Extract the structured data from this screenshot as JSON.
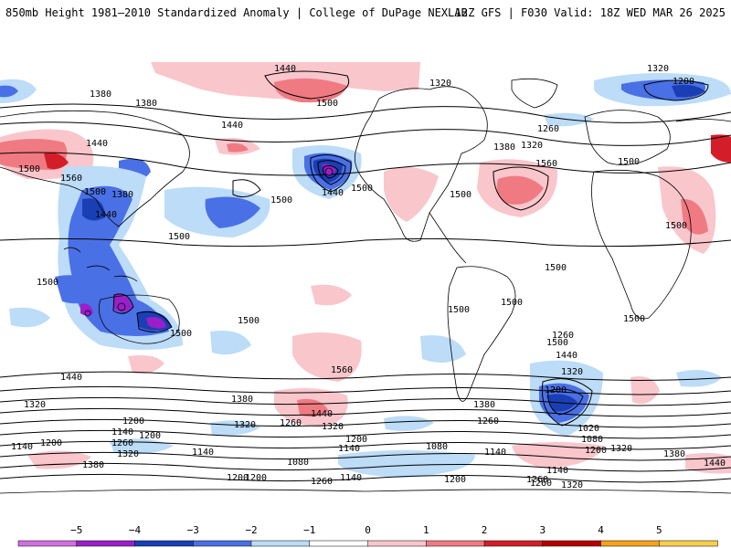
{
  "header": {
    "title": "850mb Height 1981–2010 Standardized Anomaly | College of DuPage NEXLAB",
    "run_info": "12Z GFS | F030 Valid: 18Z WED MAR 26 2025"
  },
  "colorbar": {
    "ticks": [
      "−5",
      "−4",
      "−3",
      "−2",
      "−1",
      "0",
      "1",
      "2",
      "3",
      "4",
      "5"
    ],
    "colors": [
      "#d070e0",
      "#9b1fc8",
      "#1a3fb5",
      "#4a70e6",
      "#bcdcf7",
      "#ffffff",
      "#f9c6cc",
      "#f07a82",
      "#d31e2a",
      "#b50000",
      "#f6a21a",
      "#f7cf4e"
    ]
  },
  "contour_labels": [
    {
      "text": "1440"
    },
    {
      "text": "1320"
    },
    {
      "text": "1380"
    },
    {
      "text": "1380"
    },
    {
      "text": "1320"
    },
    {
      "text": "1200"
    },
    {
      "text": "1500"
    },
    {
      "text": "1440"
    },
    {
      "text": "1260"
    },
    {
      "text": "1440"
    },
    {
      "text": "1500"
    },
    {
      "text": "1560"
    },
    {
      "text": "1380"
    },
    {
      "text": "1320"
    },
    {
      "text": "1500"
    },
    {
      "text": "1380"
    },
    {
      "text": "1440"
    },
    {
      "text": "1500"
    },
    {
      "text": "1440"
    },
    {
      "text": "1500"
    },
    {
      "text": "1500"
    },
    {
      "text": "1560"
    },
    {
      "text": "1500"
    },
    {
      "text": "1500"
    },
    {
      "text": "1500"
    },
    {
      "text": "1500"
    },
    {
      "text": "1500"
    },
    {
      "text": "1500"
    },
    {
      "text": "1500"
    },
    {
      "text": "1500"
    },
    {
      "text": "1500"
    },
    {
      "text": "1500"
    },
    {
      "text": "1440"
    },
    {
      "text": "1320"
    },
    {
      "text": "1560"
    },
    {
      "text": "1440"
    },
    {
      "text": "1320"
    },
    {
      "text": "1260"
    },
    {
      "text": "1500"
    },
    {
      "text": "1380"
    },
    {
      "text": "1200"
    },
    {
      "text": "1020"
    },
    {
      "text": "1080"
    },
    {
      "text": "1200"
    },
    {
      "text": "1320"
    },
    {
      "text": "1380"
    },
    {
      "text": "1440"
    },
    {
      "text": "1440"
    },
    {
      "text": "1260"
    },
    {
      "text": "1320"
    },
    {
      "text": "1200"
    },
    {
      "text": "1200"
    },
    {
      "text": "1140"
    },
    {
      "text": "1200"
    },
    {
      "text": "1260"
    },
    {
      "text": "1380"
    },
    {
      "text": "1140"
    },
    {
      "text": "1200"
    },
    {
      "text": "1140"
    },
    {
      "text": "1080"
    },
    {
      "text": "1140"
    },
    {
      "text": "1140"
    },
    {
      "text": "1200"
    },
    {
      "text": "1260"
    },
    {
      "text": "1320"
    },
    {
      "text": "1200"
    },
    {
      "text": "1260"
    },
    {
      "text": "1140"
    },
    {
      "text": "1320"
    },
    {
      "text": "1380"
    },
    {
      "text": "1080"
    },
    {
      "text": "1140"
    },
    {
      "text": "1200"
    },
    {
      "text": "1260"
    },
    {
      "text": "1320"
    },
    {
      "text": "1260"
    }
  ]
}
